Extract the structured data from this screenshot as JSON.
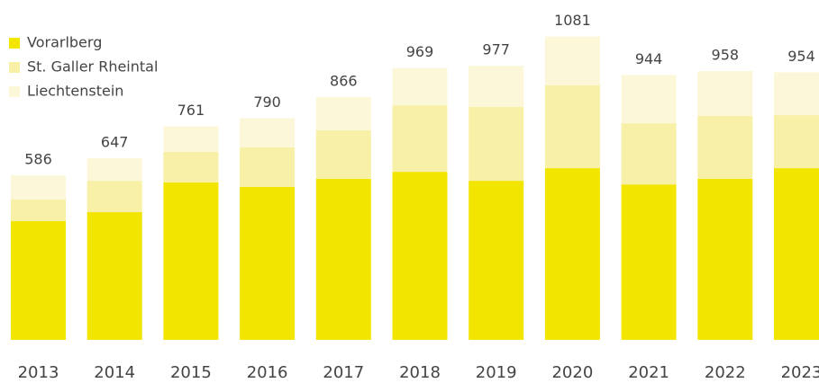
{
  "chart_data": {
    "type": "stacked-bar",
    "categories": [
      "2013",
      "2014",
      "2015",
      "2016",
      "2017",
      "2018",
      "2019",
      "2020",
      "2021",
      "2022",
      "2023"
    ],
    "series": [
      {
        "name": "Vorarlberg",
        "color": "#f2e500",
        "values": [
          423,
          455,
          561,
          545,
          574,
          599,
          567,
          612,
          554,
          574,
          612
        ]
      },
      {
        "name": "St. Galler Rheintal",
        "color": "#f8f0a6",
        "values": [
          77,
          112,
          109,
          141,
          173,
          237,
          263,
          295,
          218,
          224,
          189
        ]
      },
      {
        "name": "Liechtenstein",
        "color": "#fcf7d8",
        "values": [
          86,
          80,
          91,
          104,
          119,
          133,
          147,
          174,
          172,
          160,
          153
        ]
      }
    ],
    "totals": [
      586,
      647,
      761,
      790,
      866,
      969,
      977,
      1081,
      944,
      958,
      954
    ],
    "ylim": [
      0,
      1200
    ],
    "legend": "top-left"
  }
}
